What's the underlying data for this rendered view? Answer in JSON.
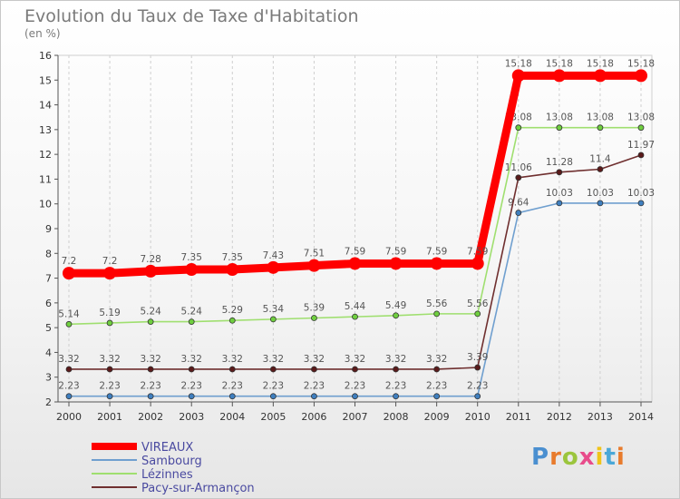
{
  "header": {
    "title": "Evolution du Taux de Taxe d'Habitation",
    "unit": "(en %)"
  },
  "logo": {
    "letters": [
      "P",
      "r",
      "o",
      "x",
      "i",
      "t",
      "i"
    ]
  },
  "chart_data": {
    "type": "line",
    "x": [
      "2000",
      "2001",
      "2002",
      "2003",
      "2004",
      "2005",
      "2006",
      "2007",
      "2008",
      "2009",
      "2010",
      "2011",
      "2012",
      "2013",
      "2014"
    ],
    "ylim": [
      2,
      16
    ],
    "yticks": [
      2,
      3,
      4,
      5,
      6,
      7,
      8,
      9,
      10,
      11,
      12,
      13,
      14,
      15,
      16
    ],
    "grid": "vertical-dashed",
    "legend_position": "bottom-left",
    "series": [
      {
        "name": "VIREAUX",
        "color": "#ff0000",
        "marker": "#ff0000",
        "values": [
          7.2,
          7.2,
          7.28,
          7.35,
          7.35,
          7.43,
          7.51,
          7.59,
          7.59,
          7.59,
          7.59,
          15.18,
          15.18,
          15.18,
          15.18
        ],
        "labels": [
          "7.2",
          "7.2",
          "7.28",
          "7.35",
          "7.35",
          "7.43",
          "7.51",
          "7.59",
          "7.59",
          "7.59",
          "7.59",
          "15.18",
          "15.18",
          "15.18",
          "15.18"
        ]
      },
      {
        "name": "Sambourg",
        "color": "#6f9fcf",
        "marker": "#3f7fbf",
        "values": [
          2.23,
          2.23,
          2.23,
          2.23,
          2.23,
          2.23,
          2.23,
          2.23,
          2.23,
          2.23,
          2.23,
          9.64,
          10.03,
          10.03,
          10.03
        ],
        "labels": [
          "2.23",
          "2.23",
          "2.23",
          "2.23",
          "2.23",
          "2.23",
          "2.23",
          "2.23",
          "2.23",
          "2.23",
          "2.23",
          "9.64",
          "10.03",
          "10.03",
          "10.03"
        ]
      },
      {
        "name": "Lézinnes",
        "color": "#9fdf6f",
        "marker": "#6fcf3f",
        "values": [
          5.14,
          5.19,
          5.24,
          5.24,
          5.29,
          5.34,
          5.39,
          5.44,
          5.49,
          5.56,
          5.56,
          13.08,
          13.08,
          13.08,
          13.08
        ],
        "labels": [
          "5.14",
          "5.19",
          "5.24",
          "5.24",
          "5.29",
          "5.34",
          "5.39",
          "5.44",
          "5.49",
          "5.56",
          "5.56",
          "13.08",
          "13.08",
          "13.08",
          "13.08"
        ]
      },
      {
        "name": "Pacy-sur-Armançon",
        "color": "#6f2f2f",
        "marker": "#5a1a1a",
        "values": [
          3.32,
          3.32,
          3.32,
          3.32,
          3.32,
          3.32,
          3.32,
          3.32,
          3.32,
          3.32,
          3.39,
          11.06,
          11.28,
          11.4,
          11.97
        ],
        "labels": [
          "3.32",
          "3.32",
          "3.32",
          "3.32",
          "3.32",
          "3.32",
          "3.32",
          "3.32",
          "3.32",
          "3.32",
          "3.39",
          "11.06",
          "11.28",
          "11.4",
          "11.97"
        ]
      }
    ]
  }
}
